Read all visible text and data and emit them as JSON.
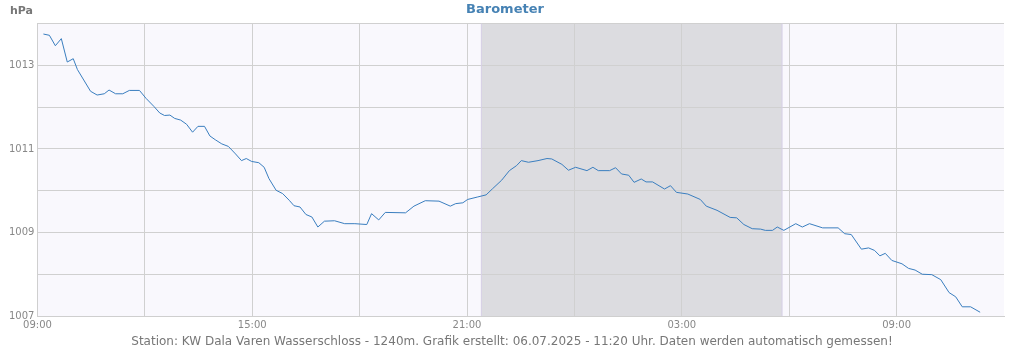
{
  "chart_data": {
    "type": "line",
    "title": "Barometer",
    "ylabel": "hPa",
    "annotations": [
      "Station: KW Dala Varen Wasserschloss - 1240m. Grafik erstellt: 06.07.2025 - 11:20 Uhr. Daten werden automatisch gemessen!"
    ],
    "x": [
      "2025-07-05T09:10",
      "2025-07-05T09:20",
      "2025-07-05T09:30",
      "2025-07-05T09:40",
      "2025-07-05T09:50",
      "2025-07-05T10:00",
      "2025-07-05T10:07",
      "2025-07-05T10:29",
      "2025-07-05T10:40",
      "2025-07-05T10:52",
      "2025-07-05T11:00",
      "2025-07-05T11:11",
      "2025-07-05T11:23",
      "2025-07-05T11:34",
      "2025-07-05T11:51",
      "2025-07-05T12:02",
      "2025-07-05T12:15",
      "2025-07-05T12:25",
      "2025-07-05T12:33",
      "2025-07-05T12:42",
      "2025-07-05T12:50",
      "2025-07-05T13:00",
      "2025-07-05T13:10",
      "2025-07-05T13:20",
      "2025-07-05T13:29",
      "2025-07-05T13:40",
      "2025-07-05T13:49",
      "2025-07-05T13:58",
      "2025-07-05T14:09",
      "2025-07-05T14:20",
      "2025-07-05T14:32",
      "2025-07-05T14:42",
      "2025-07-05T14:50",
      "2025-07-05T14:59",
      "2025-07-05T15:11",
      "2025-07-05T15:20",
      "2025-07-05T15:28",
      "2025-07-05T15:40",
      "2025-07-05T15:51",
      "2025-07-05T16:02",
      "2025-07-05T16:10",
      "2025-07-05T16:20",
      "2025-07-05T16:30",
      "2025-07-05T16:40",
      "2025-07-05T16:50",
      "2025-07-05T17:01",
      "2025-07-05T17:18",
      "2025-07-05T17:35",
      "2025-07-05T17:52",
      "2025-07-05T18:12",
      "2025-07-05T18:20",
      "2025-07-05T18:32",
      "2025-07-05T18:43",
      "2025-07-05T19:17",
      "2025-07-05T19:31",
      "2025-07-05T19:50",
      "2025-07-05T20:13",
      "2025-07-05T20:32",
      "2025-07-05T20:41",
      "2025-07-05T20:53",
      "2025-07-05T21:01",
      "2025-07-05T21:18",
      "2025-07-05T21:32",
      "2025-07-05T21:43",
      "2025-07-05T21:58",
      "2025-07-05T22:11",
      "2025-07-05T22:23",
      "2025-07-05T22:31",
      "2025-07-05T22:43",
      "2025-07-05T22:59",
      "2025-07-05T23:14",
      "2025-07-05T23:22",
      "2025-07-05T23:39",
      "2025-07-05T23:50",
      "2025-07-06T00:02",
      "2025-07-06T00:21",
      "2025-07-06T00:31",
      "2025-07-06T00:40",
      "2025-07-06T00:59",
      "2025-07-06T01:09",
      "2025-07-06T01:19",
      "2025-07-06T01:31",
      "2025-07-06T01:40",
      "2025-07-06T01:52",
      "2025-07-06T02:00",
      "2025-07-06T02:11",
      "2025-07-06T02:31",
      "2025-07-06T02:41",
      "2025-07-06T02:51",
      "2025-07-06T03:10",
      "2025-07-06T03:31",
      "2025-07-06T03:41",
      "2025-07-06T03:59",
      "2025-07-06T04:21",
      "2025-07-06T04:32",
      "2025-07-06T04:44",
      "2025-07-06T04:58",
      "2025-07-06T05:12",
      "2025-07-06T05:20",
      "2025-07-06T05:32",
      "2025-07-06T05:40",
      "2025-07-06T05:51",
      "2025-07-06T06:11",
      "2025-07-06T06:22",
      "2025-07-06T06:34",
      "2025-07-06T06:56",
      "2025-07-06T07:22",
      "2025-07-06T07:33",
      "2025-07-06T07:44",
      "2025-07-06T08:01",
      "2025-07-06T08:13",
      "2025-07-06T08:23",
      "2025-07-06T08:32",
      "2025-07-06T08:41",
      "2025-07-06T08:52",
      "2025-07-06T09:09",
      "2025-07-06T09:20",
      "2025-07-06T09:31",
      "2025-07-06T09:43",
      "2025-07-06T09:59",
      "2025-07-06T10:14",
      "2025-07-06T10:28",
      "2025-07-06T10:39",
      "2025-07-06T10:50",
      "2025-07-06T11:04",
      "2025-07-06T11:20"
    ],
    "series": [
      {
        "color": "#3a7ebf",
        "values": [
          1013.75,
          1013.72,
          1013.47,
          1013.64,
          1013.08,
          1013.16,
          1012.9,
          1012.38,
          1012.29,
          1012.32,
          1012.41,
          1012.32,
          1012.32,
          1012.4,
          1012.4,
          1012.21,
          1012.02,
          1011.86,
          1011.8,
          1011.81,
          1011.73,
          1011.69,
          1011.59,
          1011.4,
          1011.54,
          1011.54,
          1011.31,
          1011.22,
          1011.12,
          1011.06,
          1010.88,
          1010.72,
          1010.77,
          1010.7,
          1010.67,
          1010.56,
          1010.29,
          1010.01,
          1009.93,
          1009.77,
          1009.64,
          1009.61,
          1009.43,
          1009.37,
          1009.13,
          1009.27,
          1009.28,
          1009.21,
          1009.21,
          1009.19,
          1009.45,
          1009.3,
          1009.48,
          1009.47,
          1009.63,
          1009.76,
          1009.75,
          1009.63,
          1009.69,
          1009.71,
          1009.79,
          1009.85,
          1009.9,
          1010.05,
          1010.25,
          1010.48,
          1010.6,
          1010.72,
          1010.68,
          1010.72,
          1010.77,
          1010.76,
          1010.63,
          1010.49,
          1010.56,
          1010.48,
          1010.56,
          1010.48,
          1010.48,
          1010.55,
          1010.4,
          1010.37,
          1010.2,
          1010.28,
          1010.21,
          1010.21,
          1010.04,
          1010.12,
          1009.96,
          1009.92,
          1009.79,
          1009.63,
          1009.53,
          1009.36,
          1009.35,
          1009.19,
          1009.09,
          1009.08,
          1009.05,
          1009.05,
          1009.13,
          1009.05,
          1009.21,
          1009.13,
          1009.21,
          1009.11,
          1009.11,
          1008.97,
          1008.95,
          1008.6,
          1008.63,
          1008.57,
          1008.44,
          1008.5,
          1008.33,
          1008.25,
          1008.14,
          1008.1,
          1008.0,
          1007.99,
          1007.87,
          1007.56,
          1007.46,
          1007.22,
          1007.22,
          1007.09
        ]
      }
    ],
    "xlim": [
      "2025-07-05T09:00",
      "2025-07-06T12:00"
    ],
    "xticks": [
      {
        "value": "2025-07-05T09:00",
        "label": "09:00"
      },
      {
        "value": "2025-07-05T12:00",
        "label": null
      },
      {
        "value": "2025-07-05T15:00",
        "label": "15:00"
      },
      {
        "value": "2025-07-05T18:00",
        "label": null
      },
      {
        "value": "2025-07-05T21:00",
        "label": "21:00"
      },
      {
        "value": "2025-07-06T00:00",
        "label": null
      },
      {
        "value": "2025-07-06T03:00",
        "label": "03:00"
      },
      {
        "value": "2025-07-06T06:00",
        "label": null
      },
      {
        "value": "2025-07-06T09:00",
        "label": "09:00"
      }
    ],
    "ylim": [
      1007,
      1014
    ],
    "yticks": [
      1007,
      {
        "value": 1008,
        "label": null
      },
      1009,
      {
        "value": 1010,
        "label": null
      },
      1011,
      {
        "value": 1012,
        "label": null
      },
      1013,
      {
        "value": 1014,
        "label": null
      }
    ],
    "bands": [
      {
        "axis": "x",
        "from": "2025-07-05T21:24",
        "to": "2025-07-06T05:48",
        "color": "#dcdce0"
      }
    ],
    "ref_lines": [
      {
        "axis": "x",
        "value": "2025-07-05T21:24",
        "color": "#d6cfe6"
      },
      {
        "axis": "x",
        "value": "2025-07-06T05:48",
        "color": "#d6cfe6"
      }
    ],
    "grid": true,
    "legend": false,
    "marker": "none",
    "line_style": "solid"
  }
}
